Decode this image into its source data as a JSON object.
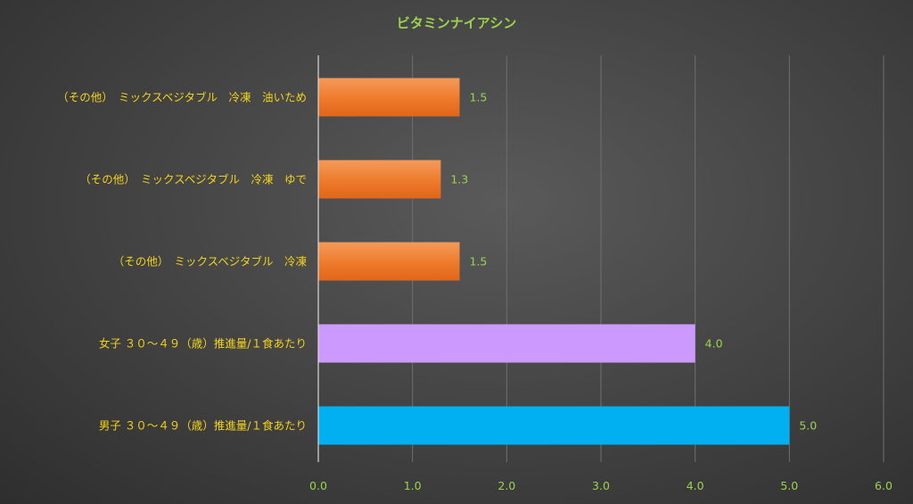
{
  "chart_data": {
    "type": "bar",
    "orientation": "horizontal",
    "title": "ビタミンナイアシン",
    "categories": [
      "（その他）　ミックスベジタブル　冷凍　油いため",
      "（その他）　ミックスベジタブル　冷凍　ゆで",
      "（その他）　ミックスベジタブル　冷凍",
      "女子 ３０～４９（歳）推進量/１食あたり",
      "男子 ３０～４９（歳）推進量/１食あたり"
    ],
    "values": [
      1.5,
      1.3,
      1.5,
      4.0,
      5.0
    ],
    "value_labels": [
      "1.5",
      "1.3",
      "1.5",
      "4.0",
      "5.0"
    ],
    "bar_colors": [
      "#ee7a2a",
      "#ee7a2a",
      "#ee7a2a",
      "#cc99ff",
      "#00b0f0"
    ],
    "xlim": [
      0,
      6
    ],
    "x_ticks": [
      "0.0",
      "1.0",
      "2.0",
      "3.0",
      "4.0",
      "5.0",
      "6.0"
    ],
    "xlabel": "",
    "ylabel": "",
    "grid": "vertical",
    "legend": "none",
    "colors": {
      "title": "#9bd34c",
      "category_labels": "#f2d31a",
      "tick_labels": "#9bd34c",
      "data_labels": "#9bd34c"
    }
  }
}
